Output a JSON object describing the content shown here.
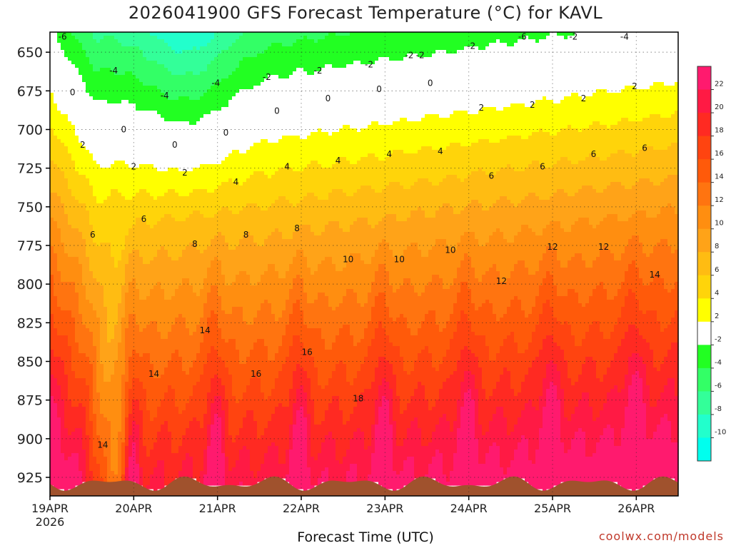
{
  "chart_data": {
    "type": "heatmap",
    "title": "2026041900 GFS Forecast Temperature (°C) for KAVL",
    "xlabel": "Forecast Time (UTC)",
    "credit": "coolwx.com/models",
    "y_ticks": [
      "650",
      "675",
      "700",
      "725",
      "750",
      "775",
      "800",
      "825",
      "850",
      "875",
      "900",
      "925"
    ],
    "y_range": [
      637,
      937
    ],
    "y_unit": "hPa",
    "x_ticks": [
      {
        "label": "19APR",
        "sublabel": "2026"
      },
      {
        "label": "20APR"
      },
      {
        "label": "21APR"
      },
      {
        "label": "22APR"
      },
      {
        "label": "23APR"
      },
      {
        "label": "24APR"
      },
      {
        "label": "25APR"
      },
      {
        "label": "26APR"
      }
    ],
    "x_range_days": [
      0,
      7.5
    ],
    "colorbar": {
      "labels": [
        "22",
        "20",
        "18",
        "16",
        "14",
        "12",
        "10",
        "8",
        "6",
        "4",
        "2",
        "-2",
        "-4",
        "-6",
        "-8",
        "-10"
      ],
      "bins": [
        {
          "range": [
            22,
            24
          ],
          "color": "#ff1a6e"
        },
        {
          "range": [
            20,
            22
          ],
          "color": "#ff1a44"
        },
        {
          "range": [
            18,
            20
          ],
          "color": "#ff2a22"
        },
        {
          "range": [
            16,
            18
          ],
          "color": "#ff4410"
        },
        {
          "range": [
            14,
            16
          ],
          "color": "#ff5a0a"
        },
        {
          "range": [
            12,
            14
          ],
          "color": "#ff7410"
        },
        {
          "range": [
            10,
            12
          ],
          "color": "#ff8e10"
        },
        {
          "range": [
            8,
            10
          ],
          "color": "#ffa318"
        },
        {
          "range": [
            6,
            8
          ],
          "color": "#ffbc12"
        },
        {
          "range": [
            4,
            6
          ],
          "color": "#ffd40a"
        },
        {
          "range": [
            2,
            4
          ],
          "color": "#ffff00"
        },
        {
          "range": [
            -2,
            2
          ],
          "color": "#ffffff"
        },
        {
          "range": [
            -4,
            -2
          ],
          "color": "#22ff22"
        },
        {
          "range": [
            -6,
            -4
          ],
          "color": "#33ff66"
        },
        {
          "range": [
            -8,
            -6
          ],
          "color": "#33ff99"
        },
        {
          "range": [
            -10,
            -8
          ],
          "color": "#22ffcc"
        },
        {
          "range": [
            -12,
            -10
          ],
          "color": "#00ffee"
        }
      ]
    },
    "contour_labels": [
      "-6",
      "-4",
      "-4",
      "-4",
      "-2",
      "-2",
      "-2",
      "-2",
      "-2",
      "-6",
      "-2",
      "-4",
      "0",
      "0",
      "0",
      "0",
      "0",
      "0",
      "0",
      "0",
      "2",
      "2",
      "2",
      "2",
      "2",
      "2",
      "2",
      "4",
      "4",
      "4",
      "4",
      "4",
      "6",
      "6",
      "6",
      "6",
      "6",
      "6",
      "8",
      "8",
      "8",
      "10",
      "10",
      "10",
      "12",
      "12",
      "12",
      "14",
      "14",
      "14",
      "14",
      "16",
      "16",
      "18",
      "-2"
    ],
    "surface": {
      "color": "#a0522d"
    }
  }
}
